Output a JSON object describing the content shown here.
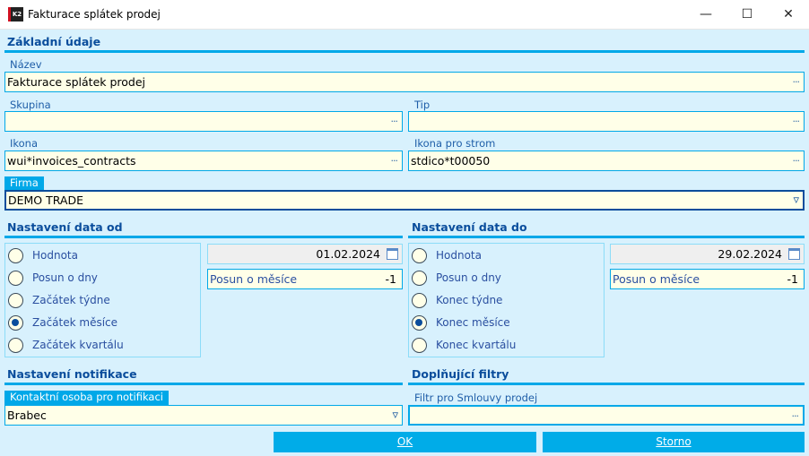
{
  "window": {
    "title": "Fakturace splátek prodej",
    "logo": "K2",
    "minimize": "—",
    "maximize": "☐",
    "close": "✕"
  },
  "basic": {
    "heading": "Základní údaje",
    "nazev": {
      "label": "Název",
      "value": "Fakturace splátek prodej"
    },
    "skupina": {
      "label": "Skupina",
      "value": ""
    },
    "tip": {
      "label": "Tip",
      "value": ""
    },
    "ikona": {
      "label": "Ikona",
      "value": "wui*invoices_contracts"
    },
    "ikona_strom": {
      "label": "Ikona pro strom",
      "value": "stdico*t00050"
    },
    "firma": {
      "label": "Firma",
      "value": "DEMO TRADE"
    }
  },
  "date_from": {
    "heading": "Nastavení data od",
    "options": [
      "Hodnota",
      "Posun o dny",
      "Začátek týdne",
      "Začátek měsíce",
      "Začátek kvartálu"
    ],
    "selected": 3,
    "date": "01.02.2024",
    "shift_label": "Posun o měsíce",
    "shift_value": "-1"
  },
  "date_to": {
    "heading": "Nastavení data do",
    "options": [
      "Hodnota",
      "Posun o dny",
      "Konec týdne",
      "Konec měsíce",
      "Konec kvartálu"
    ],
    "selected": 3,
    "date": "29.02.2024",
    "shift_label": "Posun o měsíce",
    "shift_value": "-1"
  },
  "notif": {
    "heading": "Nastavení notifikace",
    "contact": {
      "label": "Kontaktní osoba pro notifikaci",
      "value": "Brabec"
    }
  },
  "filters": {
    "heading": "Doplňující filtry",
    "filter": {
      "label": "Filtr pro Smlouvy prodej",
      "value": ""
    }
  },
  "buttons": {
    "ok": "OK",
    "cancel": "Storno"
  },
  "icons": {
    "ellipsis": "···",
    "dropdown": "▿"
  }
}
